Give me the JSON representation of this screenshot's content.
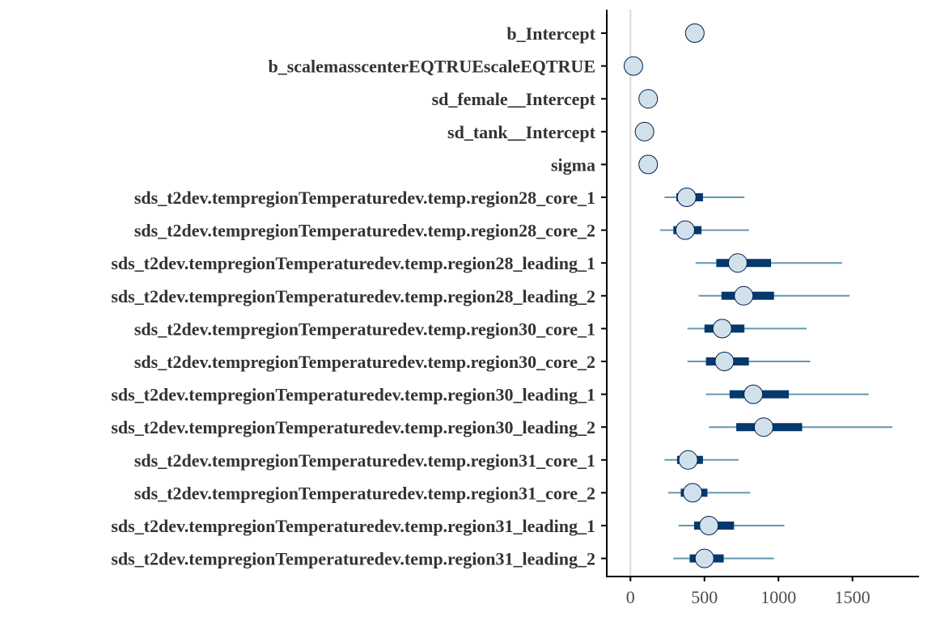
{
  "chart_data": {
    "type": "interval",
    "title": "",
    "xlabel": "",
    "ylabel": "",
    "xlim": [
      -160,
      1950
    ],
    "x_ticks": [
      0,
      500,
      1000,
      1500
    ],
    "x_tick_labels": [
      "0",
      "500",
      "1000",
      "1500"
    ],
    "reference_line": 0,
    "grid": false,
    "colors": {
      "point_fill": "#d1e1ec",
      "point_stroke": "#011f4b",
      "inner_interval": "#03396c",
      "outer_interval": "#6497b1",
      "reference_line": "#d9d9d9",
      "axis": "#000000"
    },
    "parameters": [
      {
        "label": "b_Intercept",
        "median": 435,
        "inner": [
          425,
          445
        ],
        "outer": [
          415,
          455
        ]
      },
      {
        "label": "b_scalemasscenterEQTRUEscaleEQTRUE",
        "median": 20,
        "inner": [
          10,
          30
        ],
        "outer": [
          0,
          40
        ]
      },
      {
        "label": "sd_female__Intercept",
        "median": 120,
        "inner": [
          110,
          130
        ],
        "outer": [
          100,
          140
        ]
      },
      {
        "label": "sd_tank__Intercept",
        "median": 95,
        "inner": [
          85,
          105
        ],
        "outer": [
          75,
          115
        ]
      },
      {
        "label": "sigma",
        "median": 120,
        "inner": [
          110,
          130
        ],
        "outer": [
          100,
          140
        ]
      },
      {
        "label": "sds_t2dev.tempregionTemperaturedev.temp.region28_core_1",
        "median": 380,
        "inner": [
          310,
          490
        ],
        "outer": [
          230,
          770
        ]
      },
      {
        "label": "sds_t2dev.tempregionTemperaturedev.temp.region28_core_2",
        "median": 370,
        "inner": [
          290,
          480
        ],
        "outer": [
          200,
          800
        ]
      },
      {
        "label": "sds_t2dev.tempregionTemperaturedev.temp.region28_leading_1",
        "median": 725,
        "inner": [
          580,
          950
        ],
        "outer": [
          440,
          1430
        ]
      },
      {
        "label": "sds_t2dev.tempregionTemperaturedev.temp.region28_leading_2",
        "median": 765,
        "inner": [
          615,
          970
        ],
        "outer": [
          460,
          1480
        ]
      },
      {
        "label": "sds_t2dev.tempregionTemperaturedev.temp.region30_core_1",
        "median": 620,
        "inner": [
          500,
          770
        ],
        "outer": [
          385,
          1190
        ]
      },
      {
        "label": "sds_t2dev.tempregionTemperaturedev.temp.region30_core_2",
        "median": 635,
        "inner": [
          510,
          800
        ],
        "outer": [
          385,
          1215
        ]
      },
      {
        "label": "sds_t2dev.tempregionTemperaturedev.temp.region30_leading_1",
        "median": 830,
        "inner": [
          670,
          1070
        ],
        "outer": [
          510,
          1610
        ]
      },
      {
        "label": "sds_t2dev.tempregionTemperaturedev.temp.region30_leading_2",
        "median": 900,
        "inner": [
          715,
          1160
        ],
        "outer": [
          530,
          1770
        ]
      },
      {
        "label": "sds_t2dev.tempregionTemperaturedev.temp.region31_core_1",
        "median": 390,
        "inner": [
          315,
          490
        ],
        "outer": [
          230,
          730
        ]
      },
      {
        "label": "sds_t2dev.tempregionTemperaturedev.temp.region31_core_2",
        "median": 420,
        "inner": [
          340,
          520
        ],
        "outer": [
          255,
          810
        ]
      },
      {
        "label": "sds_t2dev.tempregionTemperaturedev.temp.region31_leading_1",
        "median": 530,
        "inner": [
          430,
          700
        ],
        "outer": [
          325,
          1040
        ]
      },
      {
        "label": "sds_t2dev.tempregionTemperaturedev.temp.region31_leading_2",
        "median": 500,
        "inner": [
          400,
          630
        ],
        "outer": [
          290,
          970
        ]
      }
    ]
  }
}
